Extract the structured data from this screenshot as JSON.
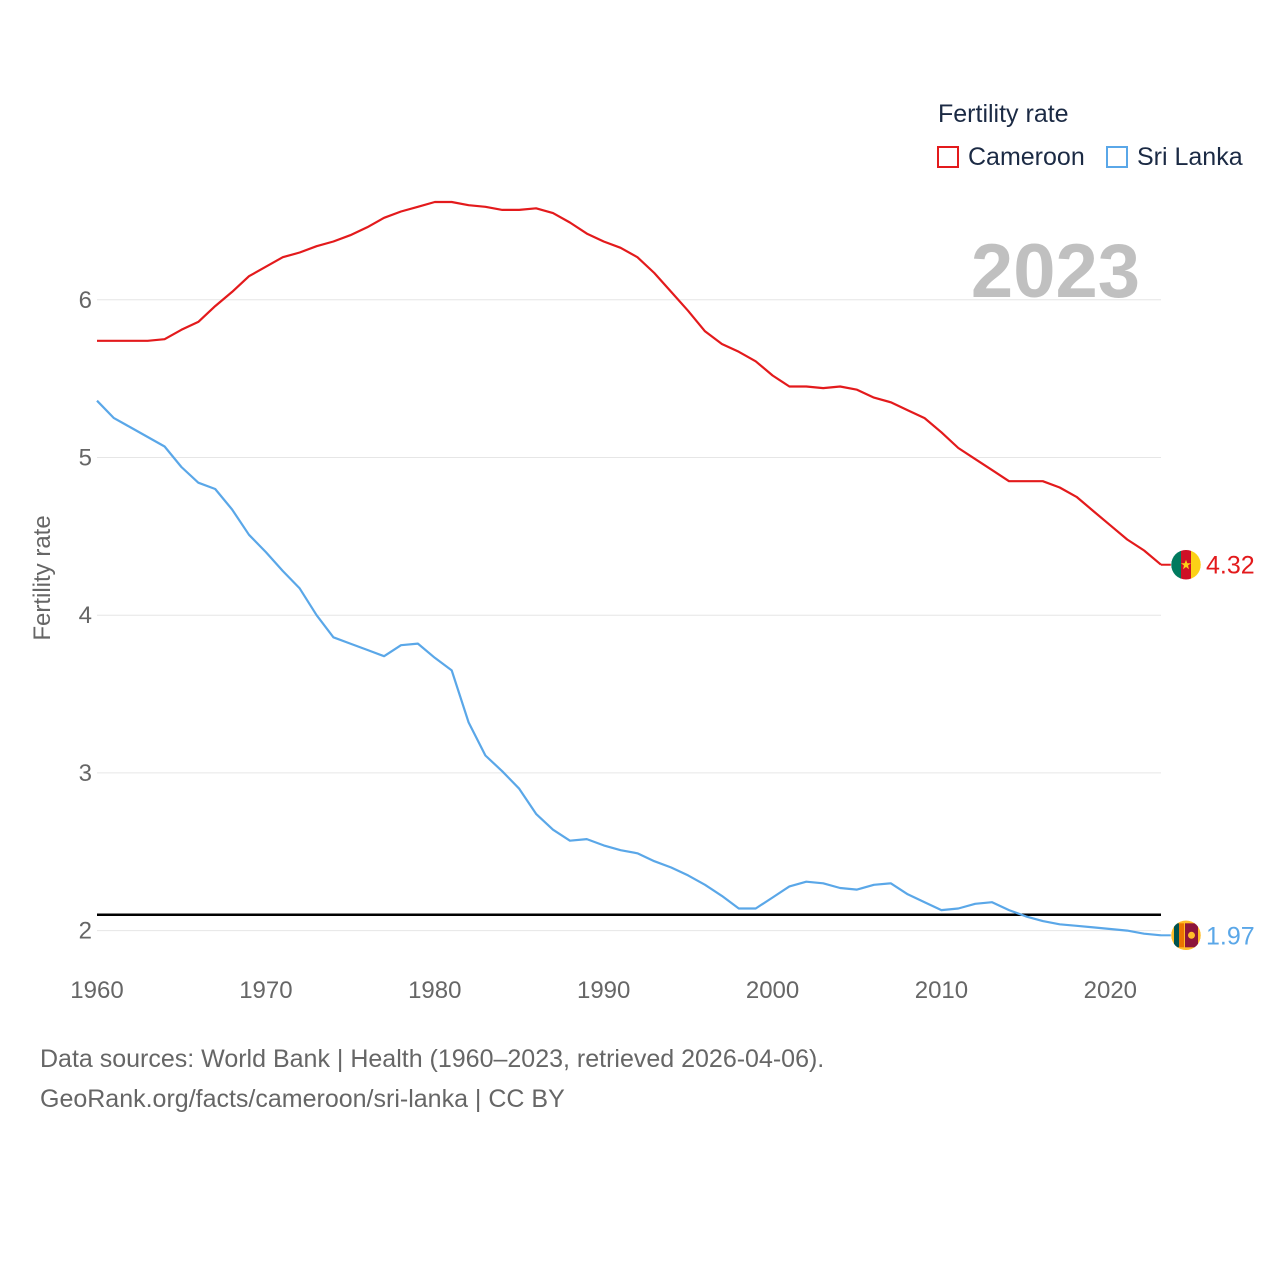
{
  "legend": {
    "title": "Fertility rate",
    "items": [
      {
        "label": "Cameroon",
        "color": "#e31a1c"
      },
      {
        "label": "Sri Lanka",
        "color": "#5aa7e8"
      }
    ]
  },
  "year_label": "2023",
  "source": {
    "line1": "Data sources: World Bank | Health (1960–2023, retrieved 2026-04-06).",
    "line2": "GeoRank.org/facts/cameroon/sri-lanka | CC BY"
  },
  "chart_data": {
    "type": "line",
    "title": "",
    "xlabel": "",
    "ylabel": "Fertility rate",
    "xlim": [
      1960,
      2023
    ],
    "ylim": [
      1.75,
      6.95
    ],
    "x_ticks": [
      "1960",
      "1970",
      "1980",
      "1990",
      "2000",
      "2010",
      "2020"
    ],
    "y_ticks": [
      "2",
      "3",
      "4",
      "5",
      "6"
    ],
    "reference_line": 2.1,
    "x": [
      1960,
      1961,
      1962,
      1963,
      1964,
      1965,
      1966,
      1967,
      1968,
      1969,
      1970,
      1971,
      1972,
      1973,
      1974,
      1975,
      1976,
      1977,
      1978,
      1979,
      1980,
      1981,
      1982,
      1983,
      1984,
      1985,
      1986,
      1987,
      1988,
      1989,
      1990,
      1991,
      1992,
      1993,
      1994,
      1995,
      1996,
      1997,
      1998,
      1999,
      2000,
      2001,
      2002,
      2003,
      2004,
      2005,
      2006,
      2007,
      2008,
      2009,
      2010,
      2011,
      2012,
      2013,
      2014,
      2015,
      2016,
      2017,
      2018,
      2019,
      2020,
      2021,
      2022,
      2023
    ],
    "series": [
      {
        "name": "Cameroon",
        "color": "#e31a1c",
        "end_label": "4.32",
        "values": [
          5.74,
          5.74,
          5.74,
          5.74,
          5.75,
          5.81,
          5.86,
          5.96,
          6.05,
          6.15,
          6.21,
          6.27,
          6.3,
          6.34,
          6.37,
          6.41,
          6.46,
          6.52,
          6.56,
          6.59,
          6.62,
          6.62,
          6.6,
          6.59,
          6.57,
          6.57,
          6.58,
          6.55,
          6.49,
          6.42,
          6.37,
          6.33,
          6.27,
          6.17,
          6.05,
          5.93,
          5.8,
          5.72,
          5.67,
          5.61,
          5.52,
          5.45,
          5.45,
          5.44,
          5.45,
          5.43,
          5.38,
          5.35,
          5.3,
          5.25,
          5.16,
          5.06,
          4.99,
          4.92,
          4.85,
          4.85,
          4.85,
          4.81,
          4.75,
          4.66,
          4.57,
          4.48,
          4.41,
          4.32
        ]
      },
      {
        "name": "Sri Lanka",
        "color": "#5aa7e8",
        "end_label": "1.97",
        "values": [
          5.36,
          5.25,
          5.19,
          5.13,
          5.07,
          4.94,
          4.84,
          4.8,
          4.67,
          4.51,
          4.4,
          4.28,
          4.17,
          4.0,
          3.86,
          3.82,
          3.78,
          3.74,
          3.81,
          3.82,
          3.73,
          3.65,
          3.32,
          3.11,
          3.01,
          2.9,
          2.74,
          2.64,
          2.57,
          2.58,
          2.54,
          2.51,
          2.49,
          2.44,
          2.4,
          2.35,
          2.29,
          2.22,
          2.14,
          2.14,
          2.21,
          2.28,
          2.31,
          2.3,
          2.27,
          2.26,
          2.29,
          2.3,
          2.23,
          2.18,
          2.13,
          2.14,
          2.17,
          2.18,
          2.13,
          2.09,
          2.06,
          2.04,
          2.03,
          2.02,
          2.01,
          2.0,
          1.98,
          1.97
        ]
      }
    ]
  }
}
